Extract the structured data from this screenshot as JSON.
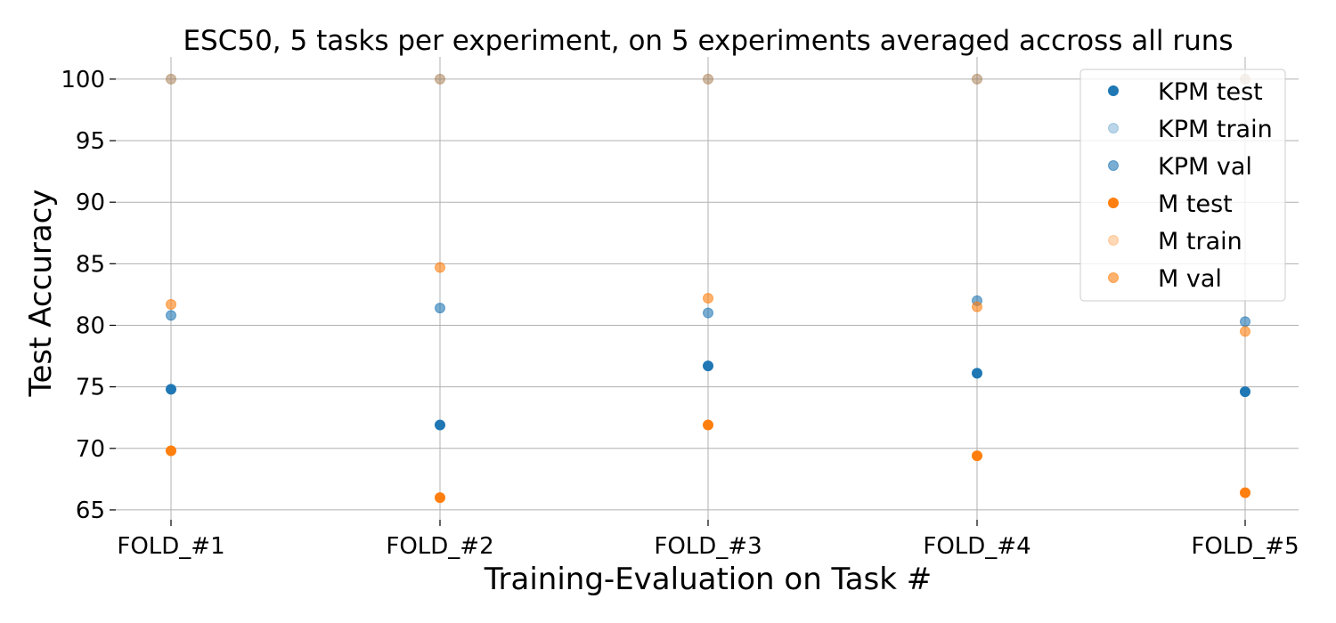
{
  "chart_data": {
    "type": "scatter",
    "title": "ESC50, 5 tasks per experiment, on 5 experiments averaged accross all runs",
    "xlabel": "Training-Evaluation on Task #",
    "ylabel": "Test Accuracy",
    "categories": [
      "FOLD_#1",
      "FOLD_#2",
      "FOLD_#3",
      "FOLD_#4",
      "FOLD_#5"
    ],
    "ylim": [
      64.2,
      101.8
    ],
    "yticks": [
      65,
      70,
      75,
      80,
      85,
      90,
      95,
      100
    ],
    "grid": true,
    "legend_position": "top-right",
    "series": [
      {
        "name": "KPM test",
        "color": "#1f77b4",
        "alpha": 1.0,
        "values": [
          74.8,
          71.9,
          76.7,
          76.1,
          74.6
        ]
      },
      {
        "name": "KPM train",
        "color": "#1f77b4",
        "alpha": 0.3,
        "values": [
          100,
          100,
          100,
          100,
          100
        ]
      },
      {
        "name": "KPM val",
        "color": "#1f77b4",
        "alpha": 0.6,
        "values": [
          80.8,
          81.4,
          81.0,
          82.0,
          80.3
        ]
      },
      {
        "name": "M test",
        "color": "#ff7f0e",
        "alpha": 1.0,
        "values": [
          69.8,
          66.0,
          71.9,
          69.4,
          66.4
        ]
      },
      {
        "name": "M train",
        "color": "#ff7f0e",
        "alpha": 0.3,
        "values": [
          100,
          100,
          100,
          100,
          100
        ]
      },
      {
        "name": "M val",
        "color": "#ff7f0e",
        "alpha": 0.6,
        "values": [
          81.7,
          84.7,
          82.2,
          81.5,
          79.5
        ]
      }
    ]
  }
}
